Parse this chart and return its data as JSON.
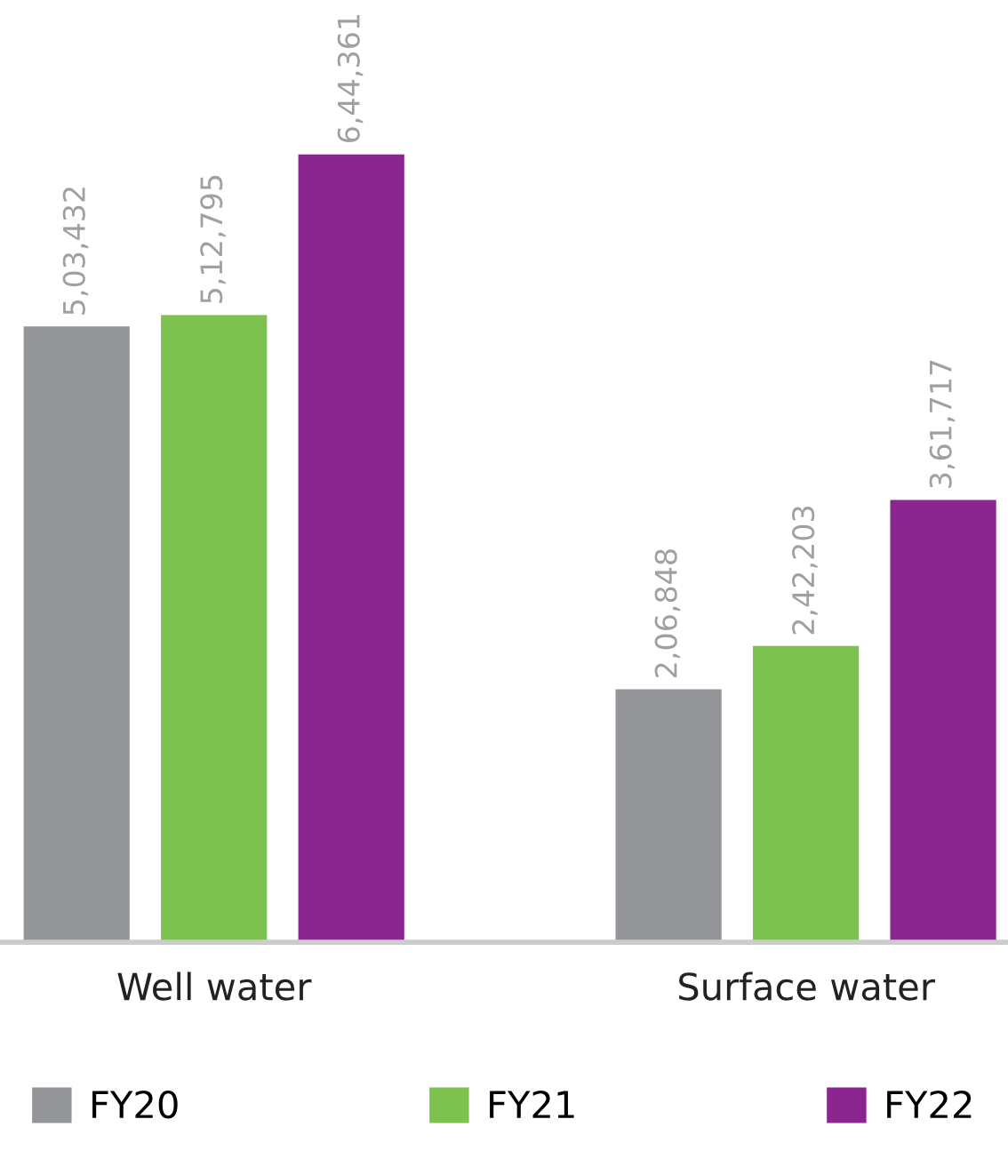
{
  "chart_data": {
    "type": "bar",
    "categories": [
      "Well water",
      "Surface water"
    ],
    "series": [
      {
        "name": "FY20",
        "color": "#939598",
        "values": [
          503432,
          206848
        ],
        "value_labels": [
          "5,03,432",
          "2,06,848"
        ]
      },
      {
        "name": "FY21",
        "color": "#7dc24f",
        "values": [
          512795,
          242203
        ],
        "value_labels": [
          "5,12,795",
          "2,42,203"
        ]
      },
      {
        "name": "FY22",
        "color": "#8b2590",
        "values": [
          644361,
          361717
        ],
        "value_labels": [
          "6,44,361",
          "3,61,717"
        ]
      }
    ],
    "legend": "bottom",
    "grid": false
  }
}
